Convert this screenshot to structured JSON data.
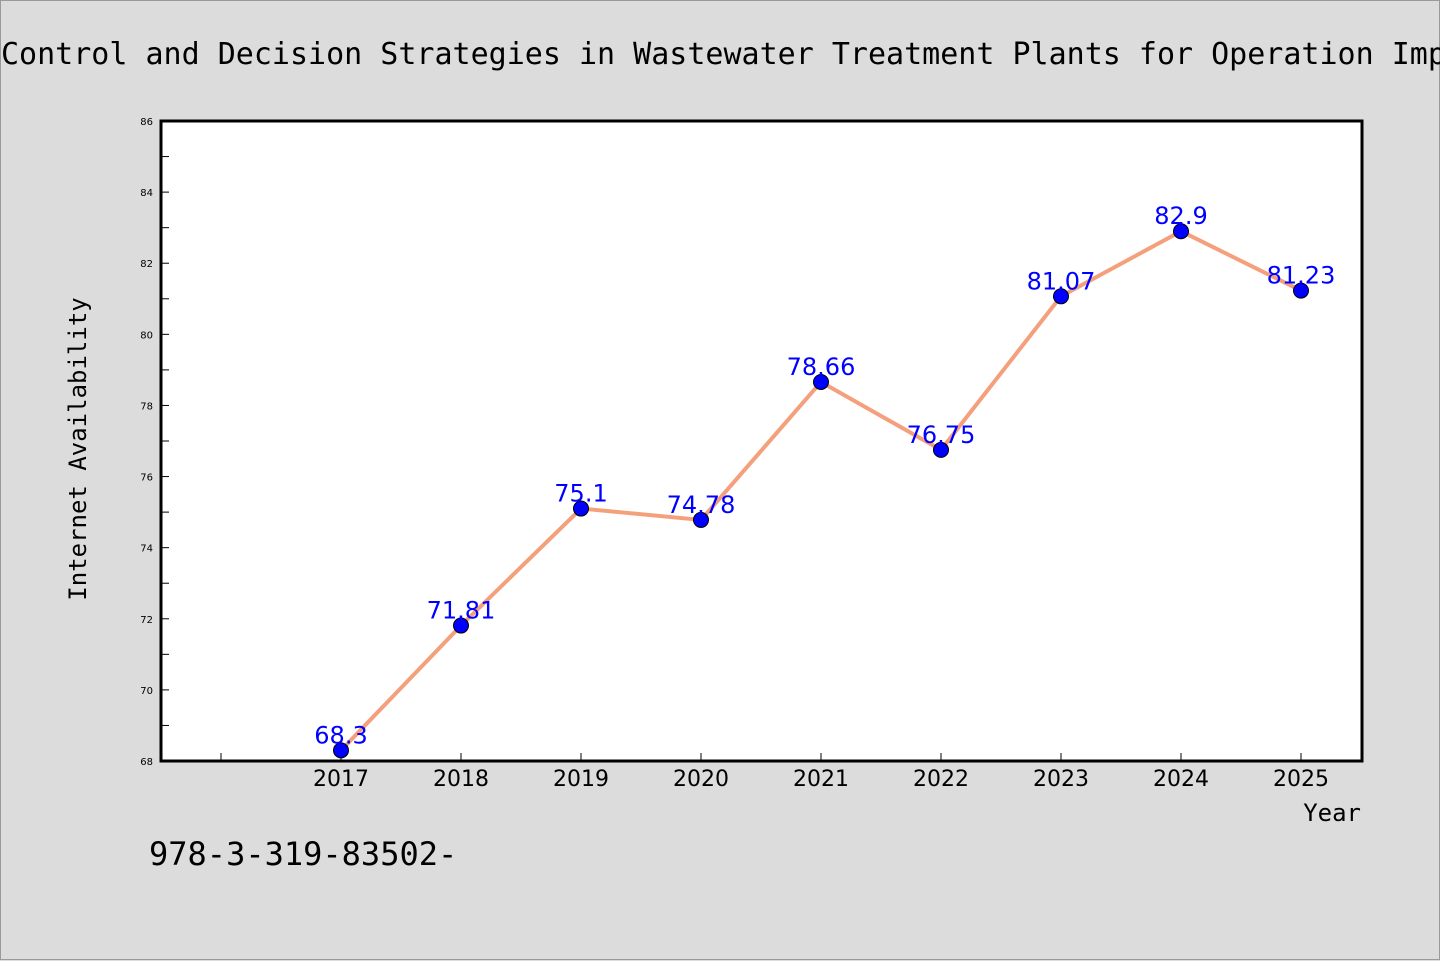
{
  "chart_data": {
    "type": "line",
    "title": "Control and Decision Strategies in Wastewater Treatment Plants for Operation Imp",
    "xlabel": "Year",
    "ylabel": "Internet Availability",
    "x": [
      "2017",
      "2018",
      "2019",
      "2020",
      "2021",
      "2022",
      "2023",
      "2024",
      "2025"
    ],
    "series": [
      {
        "values": [
          68.3,
          71.81,
          75.1,
          74.78,
          78.66,
          76.75,
          81.07,
          82.9,
          81.23
        ],
        "labels": [
          "68.3",
          "71.81",
          "75.1",
          "74.78",
          "78.66",
          "76.75",
          "81.07",
          "82.9",
          "81.23"
        ],
        "line_color": "#f4a07c",
        "marker_color": "#0000ff"
      }
    ],
    "ylim": [
      68,
      86
    ],
    "yticks": [
      "68",
      "70",
      "72",
      "74",
      "76",
      "78",
      "80",
      "82",
      "84",
      "86"
    ],
    "grid": false,
    "legend": "none"
  },
  "footer_text": "978-3-319-83502-",
  "colors": {
    "background": "#dcdcdc",
    "plot_area": "#ffffff",
    "line": "#f4a07c",
    "marker": "#0000ff",
    "data_label": "#0000ff"
  }
}
